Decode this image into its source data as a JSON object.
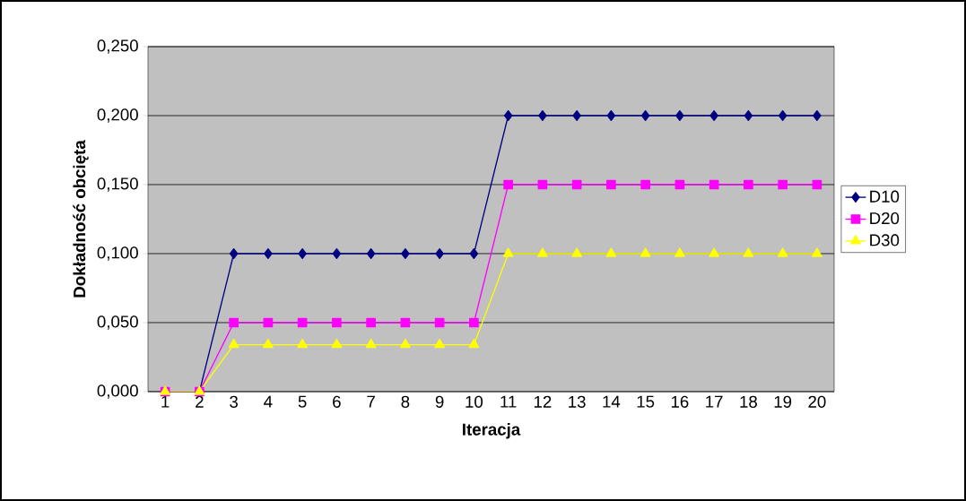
{
  "chart_data": {
    "type": "line",
    "xlabel": "Iteracja",
    "ylabel": "Dokładność obcięta",
    "categories": [
      "1",
      "2",
      "3",
      "4",
      "5",
      "6",
      "7",
      "8",
      "9",
      "10",
      "11",
      "12",
      "13",
      "14",
      "15",
      "16",
      "17",
      "18",
      "19",
      "20"
    ],
    "series": [
      {
        "name": "D10",
        "color": "#000080",
        "marker": "diamond",
        "values": [
          0,
          0,
          0.1,
          0.1,
          0.1,
          0.1,
          0.1,
          0.1,
          0.1,
          0.1,
          0.2,
          0.2,
          0.2,
          0.2,
          0.2,
          0.2,
          0.2,
          0.2,
          0.2,
          0.2
        ]
      },
      {
        "name": "D20",
        "color": "#ff00ff",
        "marker": "square",
        "values": [
          0,
          0,
          0.05,
          0.05,
          0.05,
          0.05,
          0.05,
          0.05,
          0.05,
          0.05,
          0.15,
          0.15,
          0.15,
          0.15,
          0.15,
          0.15,
          0.15,
          0.15,
          0.15,
          0.15
        ]
      },
      {
        "name": "D30",
        "color": "#ffff00",
        "marker": "triangle",
        "values": [
          0,
          0,
          0.034,
          0.034,
          0.034,
          0.034,
          0.034,
          0.034,
          0.034,
          0.034,
          0.1,
          0.1,
          0.1,
          0.1,
          0.1,
          0.1,
          0.1,
          0.1,
          0.1,
          0.1
        ]
      }
    ],
    "ylim": [
      0,
      0.25
    ],
    "yticks": [
      {
        "value": 0,
        "label": "0,000"
      },
      {
        "value": 0.05,
        "label": "0,050"
      },
      {
        "value": 0.1,
        "label": "0,100"
      },
      {
        "value": 0.15,
        "label": "0,150"
      },
      {
        "value": 0.2,
        "label": "0,200"
      },
      {
        "value": 0.25,
        "label": "0,250"
      }
    ],
    "grid": "y",
    "legend": "right",
    "line_style": "solid"
  }
}
